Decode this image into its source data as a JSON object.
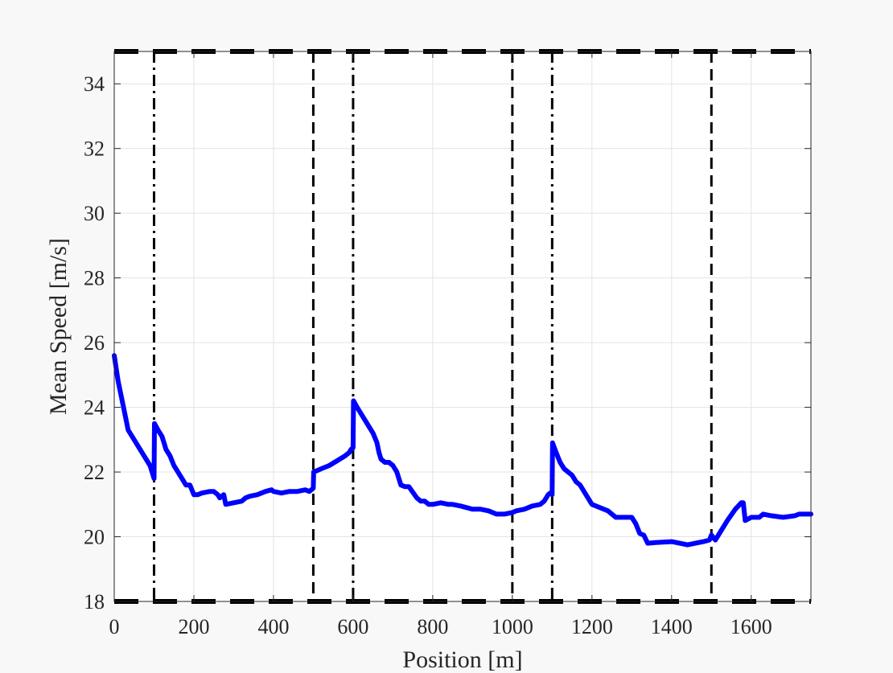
{
  "chart_data": {
    "type": "line",
    "xlabel": "Position [m]",
    "ylabel": "Mean Speed [m/s]",
    "xlim": [
      0,
      1750
    ],
    "ylim": [
      18,
      35
    ],
    "xticks": [
      0,
      200,
      400,
      600,
      800,
      1000,
      1200,
      1400,
      1600
    ],
    "yticks": [
      18,
      20,
      22,
      24,
      26,
      28,
      30,
      32,
      34
    ],
    "grid": true,
    "series": [
      {
        "color": "#0000ff",
        "x": [
          0,
          10,
          20,
          35,
          50,
          70,
          90,
          100,
          101,
          110,
          120,
          125,
          130,
          140,
          150,
          160,
          165,
          175,
          180,
          190,
          200,
          210,
          220,
          240,
          250,
          260,
          265,
          275,
          280,
          300,
          320,
          330,
          340,
          360,
          380,
          395,
          400,
          420,
          440,
          460,
          480,
          490,
          495,
          500,
          501,
          520,
          540,
          560,
          580,
          590,
          595,
          600,
          601,
          610,
          630,
          650,
          660,
          665,
          670,
          680,
          690,
          700,
          710,
          720,
          730,
          740,
          760,
          770,
          780,
          790,
          800,
          820,
          840,
          850,
          870,
          900,
          920,
          940,
          960,
          980,
          1000,
          1010,
          1030,
          1050,
          1070,
          1080,
          1090,
          1095,
          1100,
          1101,
          1110,
          1120,
          1130,
          1150,
          1160,
          1170,
          1180,
          1200,
          1220,
          1240,
          1250,
          1260,
          1280,
          1300,
          1310,
          1320,
          1330,
          1340,
          1360,
          1400,
          1420,
          1440,
          1460,
          1480,
          1495,
          1500,
          1510,
          1520,
          1540,
          1560,
          1575,
          1580,
          1585,
          1600,
          1620,
          1630,
          1650,
          1680,
          1710,
          1720,
          1750
        ],
        "y": [
          25.6,
          24.8,
          24.2,
          23.3,
          23.0,
          22.6,
          22.2,
          21.8,
          23.5,
          23.3,
          23.1,
          22.9,
          22.7,
          22.5,
          22.2,
          22.0,
          21.9,
          21.7,
          21.6,
          21.6,
          21.3,
          21.3,
          21.35,
          21.4,
          21.4,
          21.3,
          21.2,
          21.3,
          21.0,
          21.05,
          21.1,
          21.2,
          21.25,
          21.3,
          21.4,
          21.45,
          21.4,
          21.35,
          21.4,
          21.4,
          21.45,
          21.4,
          21.45,
          21.5,
          22.0,
          22.1,
          22.2,
          22.35,
          22.5,
          22.6,
          22.7,
          22.75,
          24.2,
          24.0,
          23.6,
          23.2,
          22.9,
          22.6,
          22.4,
          22.3,
          22.3,
          22.2,
          22.0,
          21.6,
          21.55,
          21.55,
          21.2,
          21.1,
          21.1,
          21.0,
          21.0,
          21.05,
          21.0,
          21.0,
          20.95,
          20.85,
          20.85,
          20.8,
          20.7,
          20.7,
          20.75,
          20.8,
          20.85,
          20.95,
          21.0,
          21.1,
          21.3,
          21.35,
          21.3,
          22.9,
          22.6,
          22.3,
          22.1,
          21.9,
          21.7,
          21.6,
          21.4,
          21.0,
          20.9,
          20.8,
          20.7,
          20.6,
          20.6,
          20.6,
          20.4,
          20.1,
          20.05,
          19.8,
          19.82,
          19.85,
          19.8,
          19.75,
          19.8,
          19.85,
          19.9,
          20.05,
          19.9,
          20.1,
          20.5,
          20.85,
          21.05,
          21.05,
          20.5,
          20.6,
          20.6,
          20.7,
          20.65,
          20.6,
          20.65,
          20.7,
          20.7
        ]
      }
    ],
    "vlines_dashdot": [
      100,
      600,
      1100
    ],
    "vlines_dashed": [
      500,
      1000,
      1500
    ],
    "hlines_dashed": [
      18,
      35
    ]
  }
}
